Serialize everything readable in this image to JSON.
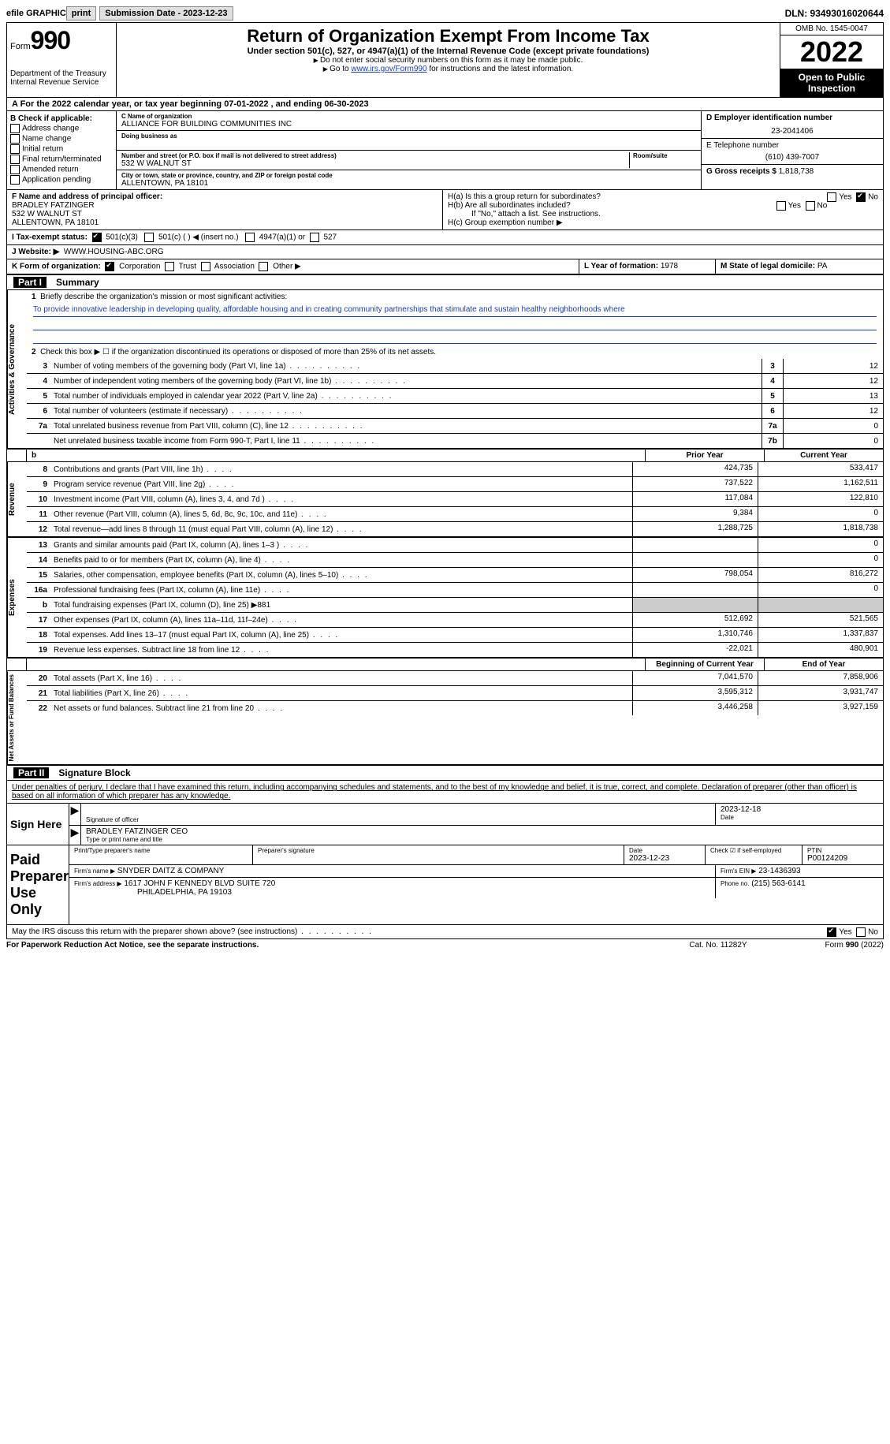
{
  "topbar": {
    "efile_label": "efile GRAPHIC",
    "print_label": "print",
    "sub_date_label": "Submission Date - 2023-12-23",
    "dln_label": "DLN: 93493016020644"
  },
  "header": {
    "form_word": "Form",
    "form_num": "990",
    "dept": "Department of the Treasury",
    "irs": "Internal Revenue Service",
    "title": "Return of Organization Exempt From Income Tax",
    "sub1": "Under section 501(c), 527, or 4947(a)(1) of the Internal Revenue Code (except private foundations)",
    "sub2": "Do not enter social security numbers on this form as it may be made public.",
    "sub3_pre": "Go to ",
    "sub3_link": "www.irs.gov/Form990",
    "sub3_post": " for instructions and the latest information.",
    "omb": "OMB No. 1545-0047",
    "year": "2022",
    "open": "Open to Public Inspection"
  },
  "calendar": {
    "line_a": "A For the 2022 calendar year, or tax year beginning 07-01-2022   , and ending 06-30-2023"
  },
  "colB": {
    "label": "B Check if applicable:",
    "items": [
      "Address change",
      "Name change",
      "Initial return",
      "Final return/terminated",
      "Amended return",
      "Application pending"
    ]
  },
  "colC": {
    "name_lbl": "C Name of organization",
    "name": "ALLIANCE FOR BUILDING COMMUNITIES INC",
    "dba_lbl": "Doing business as",
    "addr_lbl": "Number and street (or P.O. box if mail is not delivered to street address)",
    "room_lbl": "Room/suite",
    "addr": "532 W WALNUT ST",
    "city_lbl": "City or town, state or province, country, and ZIP or foreign postal code",
    "city": "ALLENTOWN, PA  18101"
  },
  "colD": {
    "ein_lbl": "D Employer identification number",
    "ein": "23-2041406",
    "phone_lbl": "E Telephone number",
    "phone": "(610) 439-7007",
    "gross_lbl": "G Gross receipts $",
    "gross": "1,818,738"
  },
  "rowF": {
    "lbl": "F Name and address of principal officer:",
    "name": "BRADLEY FATZINGER",
    "addr1": "532 W WALNUT ST",
    "addr2": "ALLENTOWN, PA  18101"
  },
  "rowH": {
    "ha": "H(a)  Is this a group return for subordinates?",
    "hb": "H(b)  Are all subordinates included?",
    "hb_note": "If \"No,\" attach a list. See instructions.",
    "hc": "H(c)  Group exemption number ▶",
    "yes": "Yes",
    "no": "No"
  },
  "rowI": {
    "lbl": "I   Tax-exempt status:",
    "o1": "501(c)(3)",
    "o2": "501(c) (  ) ◀ (insert no.)",
    "o3": "4947(a)(1) or",
    "o4": "527"
  },
  "rowJ": {
    "lbl": "J   Website: ▶",
    "val": "WWW.HOUSING-ABC.ORG"
  },
  "rowK": {
    "lbl": "K Form of organization:",
    "opts": [
      "Corporation",
      "Trust",
      "Association",
      "Other ▶"
    ],
    "l_lbl": "L Year of formation:",
    "l_val": "1978",
    "m_lbl": "M State of legal domicile:",
    "m_val": "PA"
  },
  "part1": {
    "num": "Part I",
    "title": "Summary"
  },
  "activities": {
    "label": "Activities & Governance",
    "q1": "Briefly describe the organization's mission or most significant activities:",
    "mission": "To provide innovative leadership in developing quality, affordable housing and in creating community partnerships that stimulate and sustain healthy neighborhoods where",
    "q2": "Check this box ▶ ☐  if the organization discontinued its operations or disposed of more than 25% of its net assets.",
    "lines": [
      {
        "n": "3",
        "t": "Number of voting members of the governing body (Part VI, line 1a)",
        "box": "3",
        "v": "12"
      },
      {
        "n": "4",
        "t": "Number of independent voting members of the governing body (Part VI, line 1b)",
        "box": "4",
        "v": "12"
      },
      {
        "n": "5",
        "t": "Total number of individuals employed in calendar year 2022 (Part V, line 2a)",
        "box": "5",
        "v": "13"
      },
      {
        "n": "6",
        "t": "Total number of volunteers (estimate if necessary)",
        "box": "6",
        "v": "12"
      },
      {
        "n": "7a",
        "t": "Total unrelated business revenue from Part VIII, column (C), line 12",
        "box": "7a",
        "v": "0"
      },
      {
        "n": "",
        "t": "Net unrelated business taxable income from Form 990-T, Part I, line 11",
        "box": "7b",
        "v": "0"
      }
    ]
  },
  "cols": {
    "prior": "Prior Year",
    "current": "Current Year",
    "beg": "Beginning of Current Year",
    "end": "End of Year"
  },
  "revenue": {
    "label": "Revenue",
    "lines": [
      {
        "n": "8",
        "t": "Contributions and grants (Part VIII, line 1h)",
        "p": "424,735",
        "c": "533,417"
      },
      {
        "n": "9",
        "t": "Program service revenue (Part VIII, line 2g)",
        "p": "737,522",
        "c": "1,162,511"
      },
      {
        "n": "10",
        "t": "Investment income (Part VIII, column (A), lines 3, 4, and 7d )",
        "p": "117,084",
        "c": "122,810"
      },
      {
        "n": "11",
        "t": "Other revenue (Part VIII, column (A), lines 5, 6d, 8c, 9c, 10c, and 11e)",
        "p": "9,384",
        "c": "0"
      },
      {
        "n": "12",
        "t": "Total revenue—add lines 8 through 11 (must equal Part VIII, column (A), line 12)",
        "p": "1,288,725",
        "c": "1,818,738"
      }
    ]
  },
  "expenses": {
    "label": "Expenses",
    "lines": [
      {
        "n": "13",
        "t": "Grants and similar amounts paid (Part IX, column (A), lines 1–3 )",
        "p": "",
        "c": "0"
      },
      {
        "n": "14",
        "t": "Benefits paid to or for members (Part IX, column (A), line 4)",
        "p": "",
        "c": "0"
      },
      {
        "n": "15",
        "t": "Salaries, other compensation, employee benefits (Part IX, column (A), lines 5–10)",
        "p": "798,054",
        "c": "816,272"
      },
      {
        "n": "16a",
        "t": "Professional fundraising fees (Part IX, column (A), line 11e)",
        "p": "",
        "c": "0"
      },
      {
        "n": "b",
        "t": "Total fundraising expenses (Part IX, column (D), line 25) ▶881",
        "shade": true
      },
      {
        "n": "17",
        "t": "Other expenses (Part IX, column (A), lines 11a–11d, 11f–24e)",
        "p": "512,692",
        "c": "521,565"
      },
      {
        "n": "18",
        "t": "Total expenses. Add lines 13–17 (must equal Part IX, column (A), line 25)",
        "p": "1,310,746",
        "c": "1,337,837"
      },
      {
        "n": "19",
        "t": "Revenue less expenses. Subtract line 18 from line 12",
        "p": "-22,021",
        "c": "480,901"
      }
    ]
  },
  "netassets": {
    "label": "Net Assets or Fund Balances",
    "lines": [
      {
        "n": "20",
        "t": "Total assets (Part X, line 16)",
        "p": "7,041,570",
        "c": "7,858,906"
      },
      {
        "n": "21",
        "t": "Total liabilities (Part X, line 26)",
        "p": "3,595,312",
        "c": "3,931,747"
      },
      {
        "n": "22",
        "t": "Net assets or fund balances. Subtract line 21 from line 20",
        "p": "3,446,258",
        "c": "3,927,159"
      }
    ]
  },
  "part2": {
    "num": "Part II",
    "title": "Signature Block"
  },
  "sig": {
    "penalties": "Under penalties of perjury, I declare that I have examined this return, including accompanying schedules and statements, and to the best of my knowledge and belief, it is true, correct, and complete. Declaration of preparer (other than officer) is based on all information of which preparer has any knowledge.",
    "sign_here": "Sign Here",
    "sig_officer_lbl": "Signature of officer",
    "date_lbl": "Date",
    "sig_date": "2023-12-18",
    "name_title": "BRADLEY FATZINGER  CEO",
    "type_lbl": "Type or print name and title",
    "paid": "Paid Preparer Use Only",
    "print_name_lbl": "Print/Type preparer's name",
    "prep_sig_lbl": "Preparer's signature",
    "prep_date_lbl": "Date",
    "prep_date": "2023-12-23",
    "check_self": "Check ☑ if self-employed",
    "ptin_lbl": "PTIN",
    "ptin": "P00124209",
    "firm_name_lbl": "Firm's name   ▶",
    "firm_name": "SNYDER DAITZ & COMPANY",
    "firm_ein_lbl": "Firm's EIN ▶",
    "firm_ein": "23-1436393",
    "firm_addr_lbl": "Firm's address ▶",
    "firm_addr1": "1617 JOHN F KENNEDY BLVD SUITE 720",
    "firm_addr2": "PHILADELPHIA, PA  19103",
    "firm_phone_lbl": "Phone no.",
    "firm_phone": "(215) 563-6141",
    "may_irs": "May the IRS discuss this return with the preparer shown above? (see instructions)"
  },
  "footer": {
    "left": "For Paperwork Reduction Act Notice, see the separate instructions.",
    "center": "Cat. No. 11282Y",
    "right": "Form 990 (2022)"
  }
}
